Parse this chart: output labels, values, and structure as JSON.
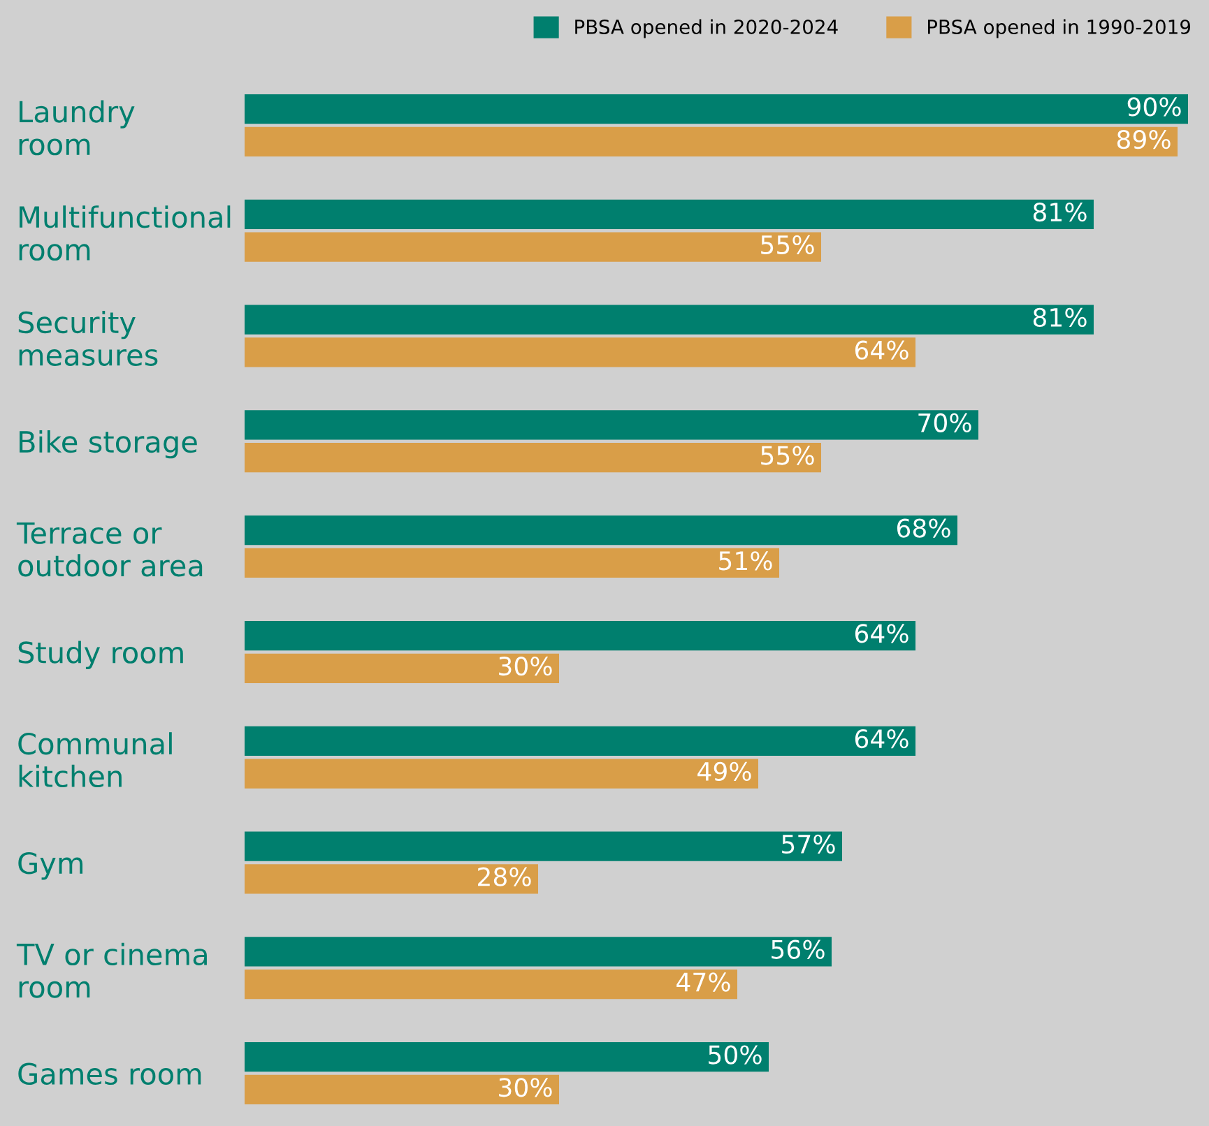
{
  "chart_data": {
    "type": "bar",
    "orientation": "horizontal",
    "categories": [
      "Laundry\nroom",
      "Multifunctional\nroom",
      "Security\nmeasures",
      "Bike storage",
      "Terrace or\noutdoor area",
      "Study room",
      "Communal\nkitchen",
      "Gym",
      "TV or cinema\nroom",
      "Games room"
    ],
    "series": [
      {
        "name": "PBSA opened in 2020-2024",
        "color": "#007f6e",
        "values": [
          90,
          81,
          81,
          70,
          68,
          64,
          64,
          57,
          56,
          50
        ],
        "value_labels": [
          "90%",
          "81%",
          "81%",
          "70%",
          "68%",
          "64%",
          "64%",
          "57%",
          "56%",
          "50%"
        ]
      },
      {
        "name": "PBSA opened in 1990-2019",
        "color": "#d99e48",
        "values": [
          89,
          55,
          64,
          55,
          51,
          30,
          49,
          28,
          47,
          30
        ],
        "value_labels": [
          "89%",
          "55%",
          "64%",
          "55%",
          "51%",
          "30%",
          "49%",
          "28%",
          "47%",
          "30%"
        ]
      }
    ],
    "xlim": [
      0,
      92
    ],
    "tick_labels": "y",
    "legend": "top right",
    "grid": false
  }
}
